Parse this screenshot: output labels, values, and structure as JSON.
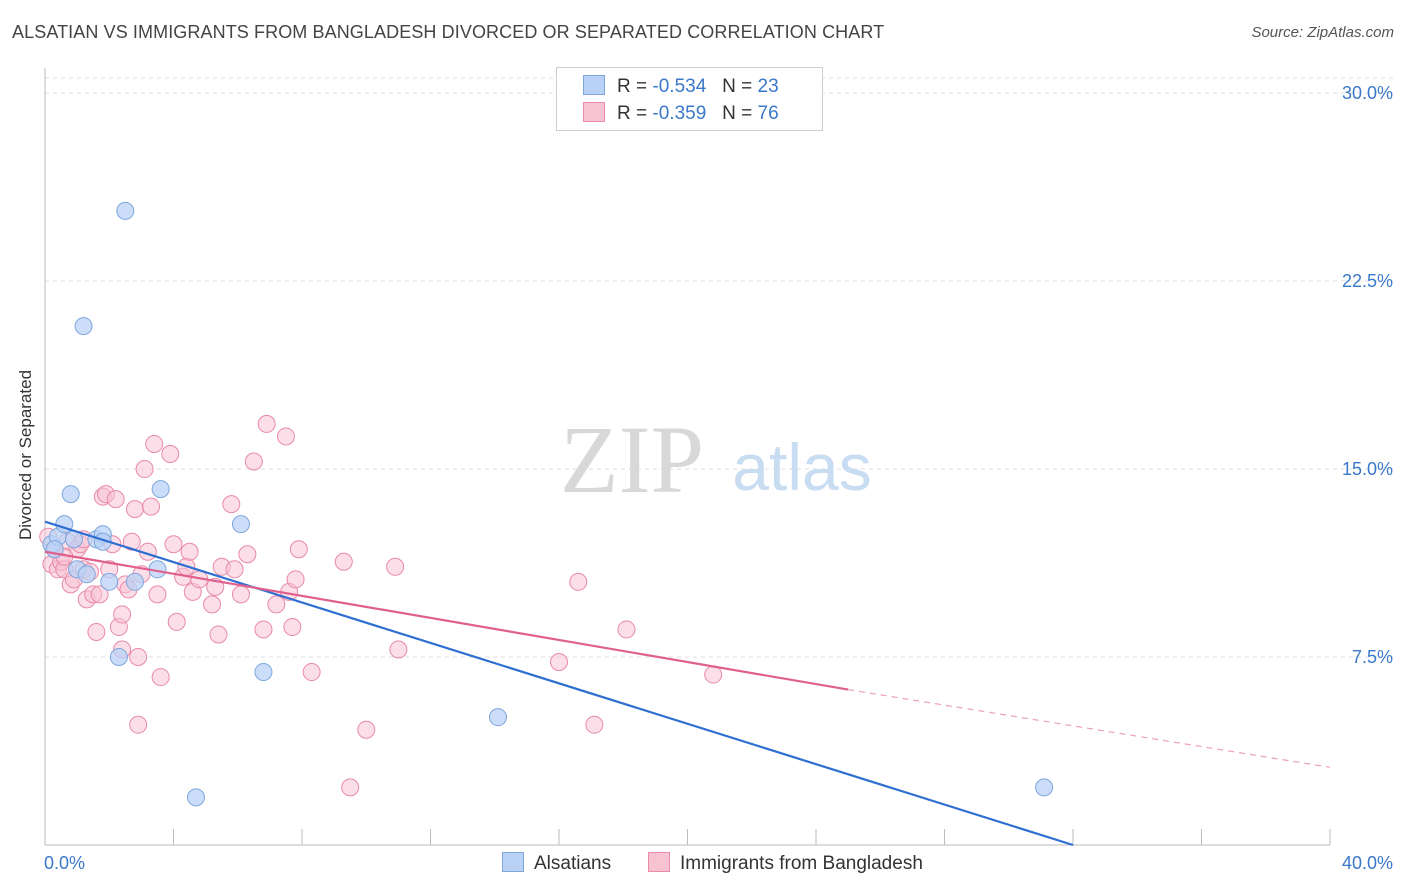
{
  "header": {
    "title": "ALSATIAN VS IMMIGRANTS FROM BANGLADESH DIVORCED OR SEPARATED CORRELATION CHART",
    "source": "Source: ZipAtlas.com"
  },
  "watermark": {
    "zip": "ZIP",
    "atlas": "atlas"
  },
  "legend": {
    "row1": {
      "r_label": "R =",
      "r_value": "-0.534",
      "n_label": "N =",
      "n_value": "23"
    },
    "row2": {
      "r_label": "R =",
      "r_value": "-0.359",
      "n_label": "N =",
      "n_value": "76"
    }
  },
  "colors": {
    "blue_fill": "#b9d1f5",
    "blue_stroke": "#7ea6dd",
    "blue_line": "#2f6fd1",
    "pink_fill": "#f7c3d3",
    "pink_stroke": "#e88aa8",
    "pink_line": "#e0608d",
    "tick_text": "#3a78c9",
    "grid": "#dddddd"
  },
  "chart_data": {
    "type": "scatter",
    "title": "ALSATIAN VS IMMIGRANTS FROM BANGLADESH DIVORCED OR SEPARATED CORRELATION CHART",
    "xlabel": "",
    "ylabel": "Divorced or Separated",
    "xlim": [
      0,
      40
    ],
    "ylim": [
      0,
      31
    ],
    "x_tick_labels": [
      "0.0%",
      "40.0%"
    ],
    "y_ticks": [
      7.5,
      15.0,
      22.5,
      30.0
    ],
    "y_tick_labels": [
      "7.5%",
      "15.0%",
      "22.5%",
      "30.0%"
    ],
    "grid": "horizontal dashed",
    "legend_position": "top-center",
    "series": [
      {
        "name": "Alsatians",
        "R": -0.534,
        "N": 23,
        "points": [
          [
            0.2,
            12.0
          ],
          [
            0.4,
            12.3
          ],
          [
            0.6,
            12.8
          ],
          [
            0.8,
            14.0
          ],
          [
            1.0,
            11.0
          ],
          [
            1.3,
            10.8
          ],
          [
            1.6,
            12.2
          ],
          [
            1.8,
            12.4
          ],
          [
            1.8,
            12.1
          ],
          [
            2.0,
            10.5
          ],
          [
            2.3,
            7.5
          ],
          [
            2.5,
            25.3
          ],
          [
            2.8,
            10.5
          ],
          [
            3.5,
            11.0
          ],
          [
            3.6,
            14.2
          ],
          [
            1.2,
            20.7
          ],
          [
            4.7,
            1.9
          ],
          [
            6.1,
            12.8
          ],
          [
            6.8,
            6.9
          ],
          [
            14.1,
            5.1
          ],
          [
            31.1,
            2.3
          ],
          [
            0.3,
            11.8
          ],
          [
            0.9,
            12.2
          ]
        ],
        "trend": {
          "x": [
            0,
            32.0
          ],
          "y": [
            12.9,
            0.0
          ]
        }
      },
      {
        "name": "Immigrants from Bangladesh",
        "R": -0.359,
        "N": 76,
        "points": [
          [
            0.1,
            12.3
          ],
          [
            0.2,
            11.2
          ],
          [
            0.3,
            11.8
          ],
          [
            0.4,
            11.0
          ],
          [
            0.5,
            11.3
          ],
          [
            0.6,
            11.0
          ],
          [
            0.7,
            12.1
          ],
          [
            0.8,
            10.4
          ],
          [
            0.9,
            10.6
          ],
          [
            1.0,
            11.8
          ],
          [
            1.1,
            12.0
          ],
          [
            1.2,
            11.0
          ],
          [
            1.3,
            9.8
          ],
          [
            1.4,
            10.9
          ],
          [
            1.5,
            10.0
          ],
          [
            1.6,
            8.5
          ],
          [
            1.7,
            10.0
          ],
          [
            1.8,
            13.9
          ],
          [
            1.9,
            14.0
          ],
          [
            2.0,
            11.0
          ],
          [
            2.1,
            12.0
          ],
          [
            2.2,
            13.8
          ],
          [
            2.3,
            8.7
          ],
          [
            2.4,
            9.2
          ],
          [
            2.4,
            7.8
          ],
          [
            2.5,
            10.4
          ],
          [
            2.6,
            10.2
          ],
          [
            2.7,
            12.1
          ],
          [
            2.8,
            13.4
          ],
          [
            2.9,
            7.5
          ],
          [
            2.9,
            4.8
          ],
          [
            3.0,
            10.8
          ],
          [
            3.1,
            15.0
          ],
          [
            3.2,
            11.7
          ],
          [
            3.3,
            13.5
          ],
          [
            3.4,
            16.0
          ],
          [
            3.5,
            10.0
          ],
          [
            3.6,
            6.7
          ],
          [
            3.9,
            15.6
          ],
          [
            4.0,
            12.0
          ],
          [
            4.1,
            8.9
          ],
          [
            4.3,
            10.7
          ],
          [
            4.4,
            11.1
          ],
          [
            4.5,
            11.7
          ],
          [
            4.6,
            10.1
          ],
          [
            4.8,
            10.6
          ],
          [
            5.2,
            9.6
          ],
          [
            5.4,
            8.4
          ],
          [
            5.5,
            11.1
          ],
          [
            5.8,
            13.6
          ],
          [
            5.9,
            11.0
          ],
          [
            6.1,
            10.0
          ],
          [
            6.3,
            11.6
          ],
          [
            6.5,
            15.3
          ],
          [
            6.8,
            8.6
          ],
          [
            6.9,
            16.8
          ],
          [
            7.2,
            9.6
          ],
          [
            7.5,
            16.3
          ],
          [
            7.6,
            10.1
          ],
          [
            7.7,
            8.7
          ],
          [
            7.8,
            10.6
          ],
          [
            7.9,
            11.8
          ],
          [
            8.3,
            6.9
          ],
          [
            9.3,
            11.3
          ],
          [
            9.5,
            2.3
          ],
          [
            10.0,
            4.6
          ],
          [
            10.9,
            11.1
          ],
          [
            11.0,
            7.8
          ],
          [
            16.0,
            7.3
          ],
          [
            16.6,
            10.5
          ],
          [
            17.1,
            4.8
          ],
          [
            18.1,
            8.6
          ],
          [
            20.8,
            6.8
          ],
          [
            0.6,
            11.5
          ],
          [
            1.2,
            12.2
          ],
          [
            5.3,
            10.3
          ]
        ],
        "trend": {
          "x": [
            0,
            25.0
          ],
          "y": [
            11.7,
            6.2
          ]
        },
        "trend_dashed": {
          "x": [
            25.0,
            40.0
          ],
          "y": [
            6.2,
            3.1
          ]
        }
      }
    ]
  },
  "bottom_legend": {
    "item1": "Alsatians",
    "item2": "Immigrants from Bangladesh"
  }
}
